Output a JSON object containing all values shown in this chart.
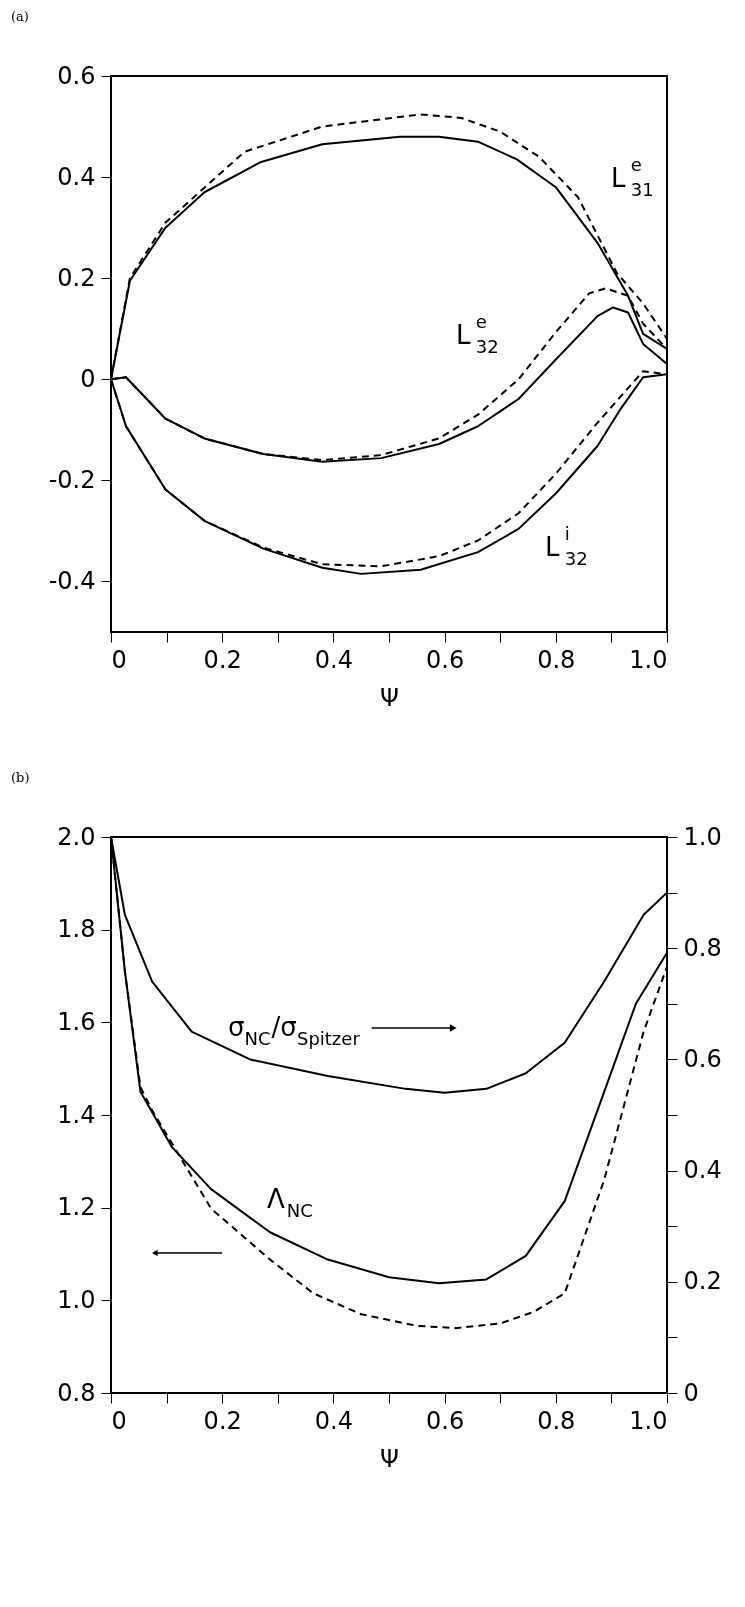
{
  "chart_data": [
    {
      "type": "line",
      "title": "(a)",
      "xlabel": "Ψ",
      "xlim": [
        0,
        1
      ],
      "xticks": [
        0,
        {
          "value": 0.1,
          "label": null
        },
        0.2,
        {
          "value": 0.3,
          "label": null
        },
        0.4,
        {
          "value": 0.5,
          "label": null
        },
        0.6,
        {
          "value": 0.7,
          "label": null
        },
        0.8,
        {
          "value": 0.9,
          "label": null
        },
        {
          "value": 1,
          "label": "1.0"
        }
      ],
      "ylim": [
        -0.5,
        0.6
      ],
      "yticks": [
        -0.4,
        -0.2,
        0,
        0.2,
        0.4,
        0.6
      ],
      "series": [
        {
          "color": "#000000",
          "line_style": "solid",
          "x": [
            0,
            0.034,
            0.098,
            0.168,
            0.27,
            0.38,
            0.52,
            0.59,
            0.66,
            0.73,
            0.8,
            0.875,
            0.93,
            0.957,
            1.0
          ],
          "values": [
            0,
            0.195,
            0.3,
            0.37,
            0.43,
            0.465,
            0.48,
            0.48,
            0.47,
            0.435,
            0.38,
            0.27,
            0.165,
            0.09,
            0.06
          ]
        },
        {
          "color": "#000000",
          "line_style": "dashed",
          "x": [
            0,
            0.034,
            0.098,
            0.24,
            0.38,
            0.557,
            0.63,
            0.7,
            0.77,
            0.84,
            0.91,
            0.957,
            1.0
          ],
          "values": [
            0,
            0.2,
            0.31,
            0.45,
            0.5,
            0.524,
            0.517,
            0.49,
            0.44,
            0.36,
            0.21,
            0.15,
            0.08
          ]
        },
        {
          "color": "#000000",
          "line_style": "solid",
          "x": [
            0,
            0.027,
            0.098,
            0.168,
            0.274,
            0.38,
            0.486,
            0.59,
            0.66,
            0.733,
            0.8,
            0.875,
            0.903,
            0.93,
            0.957,
            1.0
          ],
          "values": [
            0,
            0.004,
            -0.078,
            -0.117,
            -0.148,
            -0.163,
            -0.156,
            -0.128,
            -0.093,
            -0.039,
            0.039,
            0.125,
            0.142,
            0.132,
            0.07,
            0.03
          ]
        },
        {
          "color": "#000000",
          "line_style": "dashed",
          "x": [
            0,
            0.027,
            0.098,
            0.168,
            0.274,
            0.38,
            0.486,
            0.59,
            0.66,
            0.733,
            0.8,
            0.86,
            0.89,
            0.93,
            0.957,
            1.0
          ],
          "values": [
            0,
            0.004,
            -0.078,
            -0.117,
            -0.148,
            -0.16,
            -0.15,
            -0.117,
            -0.07,
            0.0,
            0.093,
            0.17,
            0.18,
            0.165,
            0.11,
            0.06
          ]
        },
        {
          "color": "#000000",
          "line_style": "solid",
          "x": [
            0,
            0.027,
            0.098,
            0.168,
            0.274,
            0.38,
            0.45,
            0.557,
            0.66,
            0.733,
            0.8,
            0.875,
            0.917,
            0.957,
            1.0
          ],
          "values": [
            0,
            -0.093,
            -0.218,
            -0.28,
            -0.335,
            -0.373,
            -0.385,
            -0.377,
            -0.342,
            -0.296,
            -0.226,
            -0.132,
            -0.058,
            0.004,
            0.01
          ]
        },
        {
          "color": "#000000",
          "line_style": "dashed",
          "x": [
            0,
            0.027,
            0.098,
            0.168,
            0.274,
            0.38,
            0.486,
            0.59,
            0.66,
            0.733,
            0.8,
            0.875,
            0.957,
            1.0
          ],
          "values": [
            0,
            -0.093,
            -0.218,
            -0.28,
            -0.333,
            -0.366,
            -0.37,
            -0.35,
            -0.319,
            -0.265,
            -0.187,
            -0.086,
            0.016,
            0.01
          ]
        }
      ],
      "annotations": [
        "L$^{e}$$_{31}$",
        "L$^{e}$$_{32}$",
        "L$^{i}$$_{32}$"
      ]
    },
    {
      "type": "line",
      "title": "(b)",
      "xlabel": "Ψ",
      "xlim": [
        0,
        1
      ],
      "xticks": [
        0,
        {
          "value": 0.1,
          "label": null
        },
        0.2,
        {
          "value": 0.3,
          "label": null
        },
        0.4,
        {
          "value": 0.5,
          "label": null
        },
        0.6,
        {
          "value": 0.7,
          "label": null
        },
        0.8,
        {
          "value": 0.9,
          "label": null
        },
        {
          "value": 1,
          "label": "1.0"
        }
      ],
      "ylim": [
        0.8,
        2.0
      ],
      "yticks": [
        0.8,
        {
          "value": 1,
          "label": "1.0"
        },
        1.2,
        1.4,
        1.6,
        1.8,
        {
          "value": 2,
          "label": "2.0"
        }
      ],
      "y2lim": [
        0,
        1
      ],
      "y2ticks": [
        0,
        {
          "value": 0.1,
          "label": null
        },
        0.2,
        {
          "value": 0.3,
          "label": null
        },
        0.4,
        {
          "value": 0.5,
          "label": null
        },
        0.6,
        {
          "value": 0.7,
          "label": null
        },
        0.8,
        {
          "value": 0.9,
          "label": null
        },
        {
          "value": 1,
          "label": "1.0"
        }
      ],
      "series": [
        {
          "color": "#000000",
          "line_style": "solid",
          "axis": "y2",
          "x": [
            0,
            0.025,
            0.074,
            0.145,
            0.25,
            0.39,
            0.53,
            0.6,
            0.675,
            0.746,
            0.816,
            0.887,
            0.958,
            1.0
          ],
          "values": [
            1.0,
            0.86,
            0.74,
            0.65,
            0.6,
            0.57,
            0.547,
            0.54,
            0.547,
            0.575,
            0.63,
            0.74,
            0.86,
            0.9
          ]
        },
        {
          "color": "#000000",
          "line_style": "solid",
          "x": [
            0,
            0.025,
            0.053,
            0.11,
            0.18,
            0.286,
            0.39,
            0.5,
            0.59,
            0.675,
            0.746,
            0.816,
            0.887,
            0.944,
            1.0
          ],
          "values": [
            2.0,
            1.71,
            1.45,
            1.33,
            1.24,
            1.147,
            1.088,
            1.05,
            1.037,
            1.045,
            1.096,
            1.214,
            1.45,
            1.64,
            1.75
          ]
        },
        {
          "color": "#000000",
          "line_style": "dashed",
          "x": [
            0,
            0.025,
            0.053,
            0.074,
            0.18,
            0.286,
            0.364,
            0.45,
            0.55,
            0.62,
            0.7,
            0.76,
            0.816,
            0.887,
            0.958,
            1.0
          ],
          "values": [
            2.0,
            1.71,
            1.46,
            1.41,
            1.198,
            1.088,
            1.015,
            0.97,
            0.945,
            0.94,
            0.95,
            0.975,
            1.015,
            1.26,
            1.58,
            1.72
          ]
        }
      ],
      "annotations": [
        "σ$_{NC}$/σ$_{Spitzer}$",
        "Λ$_{NC}$"
      ]
    }
  ]
}
